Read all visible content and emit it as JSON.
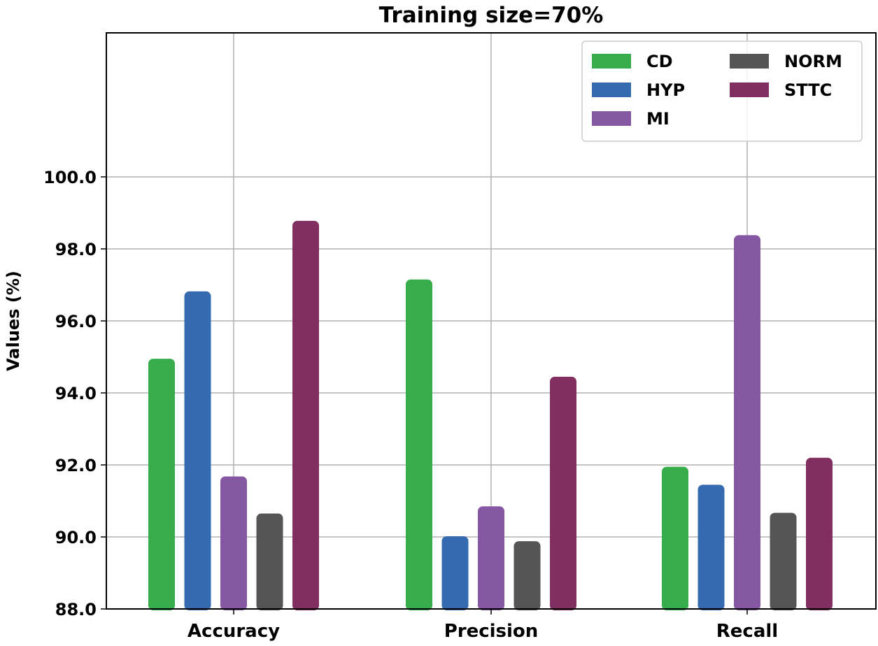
{
  "chart_data": {
    "type": "bar",
    "title": "Training size=70%",
    "xlabel": "",
    "ylabel": "Values (%)",
    "categories": [
      "Accuracy",
      "Precision",
      "Recall"
    ],
    "ylim": [
      88.0,
      104.0
    ],
    "yticks": [
      88.0,
      90.0,
      92.0,
      94.0,
      96.0,
      98.0,
      100.0
    ],
    "ytick_labels": [
      "88.0",
      "90.0",
      "92.0",
      "94.0",
      "96.0",
      "98.0",
      "100.0"
    ],
    "grid": true,
    "legend_position": "top-right",
    "series": [
      {
        "name": "CD",
        "color": "#36ad4a",
        "values": [
          94.95,
          97.15,
          91.95
        ]
      },
      {
        "name": "HYP",
        "color": "#3569b0",
        "values": [
          96.82,
          90.02,
          91.45
        ]
      },
      {
        "name": "MI",
        "color": "#8657a3",
        "values": [
          91.68,
          90.85,
          98.38
        ]
      },
      {
        "name": "NORM",
        "color": "#555555",
        "values": [
          90.65,
          89.88,
          90.67
        ]
      },
      {
        "name": "STTC",
        "color": "#812f60",
        "values": [
          98.78,
          94.45,
          92.2
        ]
      }
    ]
  }
}
